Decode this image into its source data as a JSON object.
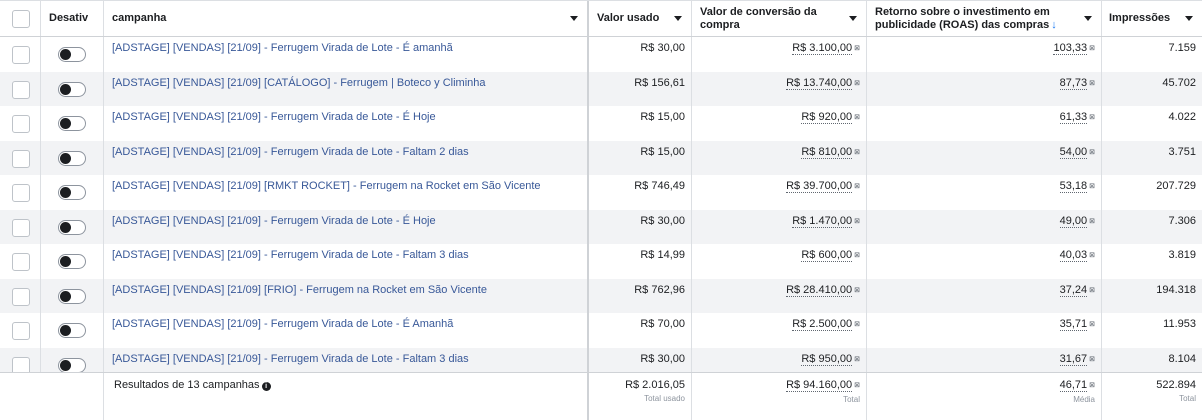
{
  "header": {
    "toggle_col": "Desativ",
    "campaign_col": "campanha",
    "spend_col": "Valor usado",
    "conv_col": "Valor de conversão da compra",
    "roas_col": "Retorno sobre o investimento em publicidade (ROAS) das compras",
    "impr_col": "Impressões"
  },
  "rows": [
    {
      "name": "[ADSTAGE] [VENDAS] [21/09] - Ferrugem Virada de Lote - É amanhã",
      "spend": "R$ 30,00",
      "conv": "R$ 3.100,00",
      "roas": "103,33",
      "impr": "7.159"
    },
    {
      "name": "[ADSTAGE] [VENDAS] [21/09] [CATÁLOGO] - Ferrugem | Boteco y Climinha",
      "spend": "R$ 156,61",
      "conv": "R$ 13.740,00",
      "roas": "87,73",
      "impr": "45.702"
    },
    {
      "name": "[ADSTAGE] [VENDAS] [21/09] - Ferrugem Virada de Lote - É Hoje",
      "spend": "R$ 15,00",
      "conv": "R$ 920,00",
      "roas": "61,33",
      "impr": "4.022"
    },
    {
      "name": "[ADSTAGE] [VENDAS] [21/09] - Ferrugem Virada de Lote - Faltam 2 dias",
      "spend": "R$ 15,00",
      "conv": "R$ 810,00",
      "roas": "54,00",
      "impr": "3.751"
    },
    {
      "name": "[ADSTAGE] [VENDAS] [21/09] [RMKT ROCKET] - Ferrugem na Rocket em São Vicente",
      "spend": "R$ 746,49",
      "conv": "R$ 39.700,00",
      "roas": "53,18",
      "impr": "207.729"
    },
    {
      "name": "[ADSTAGE] [VENDAS] [21/09] - Ferrugem Virada de Lote - É Hoje",
      "spend": "R$ 30,00",
      "conv": "R$ 1.470,00",
      "roas": "49,00",
      "impr": "7.306"
    },
    {
      "name": "[ADSTAGE] [VENDAS] [21/09] - Ferrugem Virada de Lote - Faltam 3 dias",
      "spend": "R$ 14,99",
      "conv": "R$ 600,00",
      "roas": "40,03",
      "impr": "3.819"
    },
    {
      "name": "[ADSTAGE] [VENDAS] [21/09] [FRIO] - Ferrugem na Rocket em São Vicente",
      "spend": "R$ 762,96",
      "conv": "R$ 28.410,00",
      "roas": "37,24",
      "impr": "194.318"
    },
    {
      "name": "[ADSTAGE] [VENDAS] [21/09] - Ferrugem Virada de Lote - É Amanhã",
      "spend": "R$ 70,00",
      "conv": "R$ 2.500,00",
      "roas": "35,71",
      "impr": "11.953"
    },
    {
      "name": "[ADSTAGE] [VENDAS] [21/09] - Ferrugem Virada de Lote - Faltam 3 dias",
      "spend": "R$ 30,00",
      "conv": "R$ 950,00",
      "roas": "31,67",
      "impr": "8.104"
    }
  ],
  "footer": {
    "results_label": "Resultados de 13 campanhas",
    "spend_total": "R$ 2.016,05",
    "spend_sub": "Total usado",
    "conv_total": "R$ 94.160,00",
    "conv_sub": "Total",
    "roas_avg": "46,71",
    "roas_sub": "Média",
    "impr_total": "522.894",
    "impr_sub": "Total"
  },
  "colors": {
    "link": "#385898",
    "alt_row": "#f2f3f5",
    "sort_accent": "#1877f2"
  }
}
